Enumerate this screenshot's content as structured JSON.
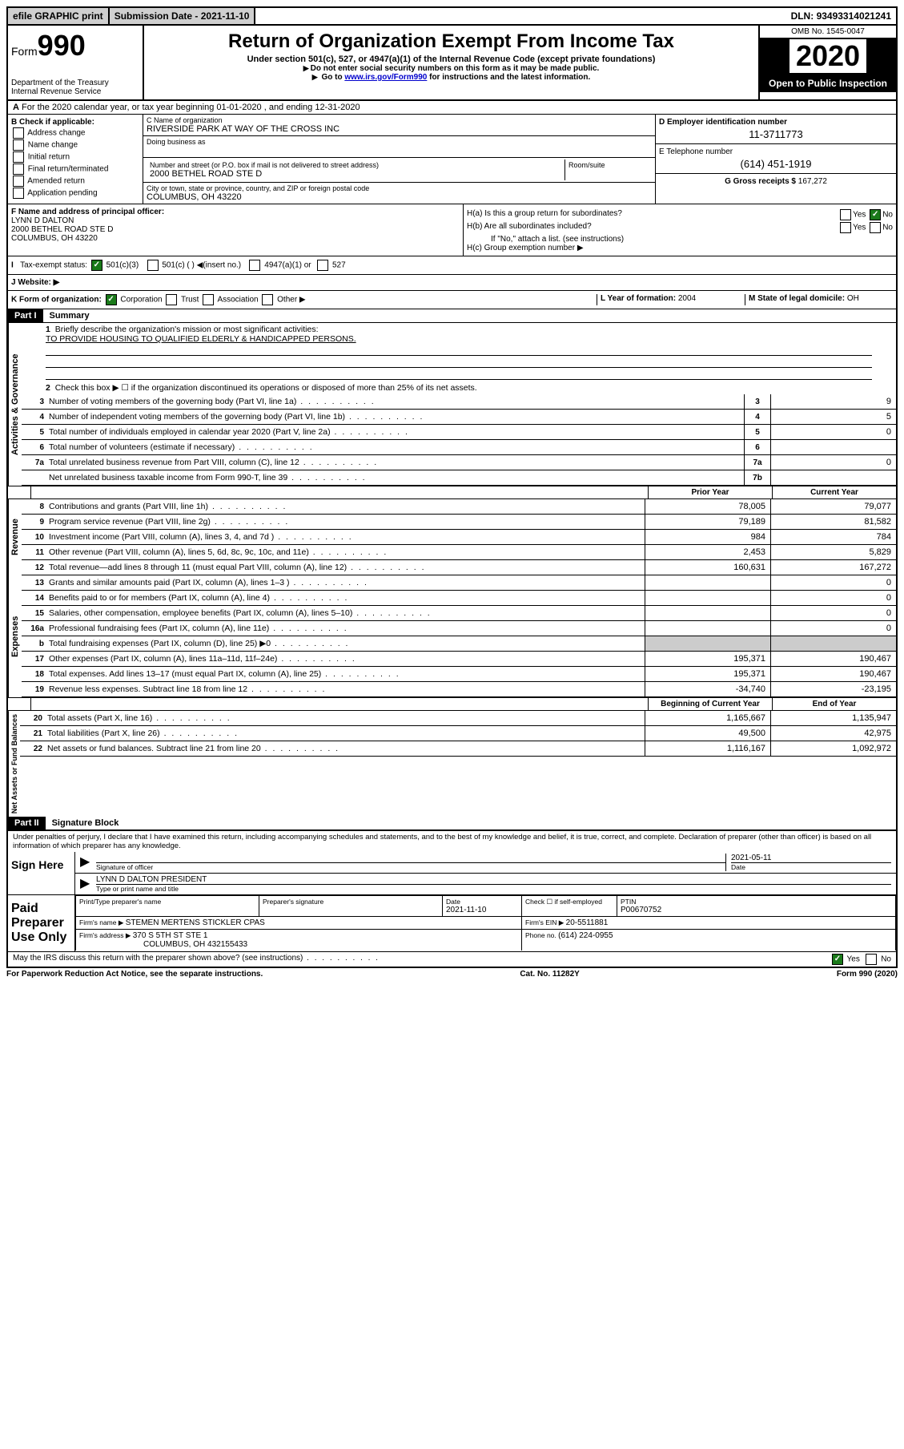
{
  "topbar": {
    "efile": "efile GRAPHIC print",
    "submission_label": "Submission Date - ",
    "submission_date": "2021-11-10",
    "dln_label": "DLN: ",
    "dln": "93493314021241"
  },
  "header": {
    "form_prefix": "Form",
    "form_number": "990",
    "dept1": "Department of the Treasury",
    "dept2": "Internal Revenue Service",
    "title": "Return of Organization Exempt From Income Tax",
    "subtitle": "Under section 501(c), 527, or 4947(a)(1) of the Internal Revenue Code (except private foundations)",
    "note1": "Do not enter social security numbers on this form as it may be made public.",
    "note2_pre": "Go to ",
    "note2_link": "www.irs.gov/Form990",
    "note2_post": " for instructions and the latest information.",
    "omb": "OMB No. 1545-0047",
    "year": "2020",
    "public": "Open to Public Inspection"
  },
  "row_a": "For the 2020 calendar year, or tax year beginning 01-01-2020   , and ending 12-31-2020",
  "section_b": {
    "label": "B Check if applicable:",
    "opts": [
      "Address change",
      "Name change",
      "Initial return",
      "Final return/terminated",
      "Amended return",
      "Application pending"
    ]
  },
  "section_c": {
    "name_label": "C Name of organization",
    "name": "RIVERSIDE PARK AT WAY OF THE CROSS INC",
    "dba_label": "Doing business as",
    "addr_label": "Number and street (or P.O. box if mail is not delivered to street address)",
    "room_label": "Room/suite",
    "addr": "2000 BETHEL ROAD STE D",
    "city_label": "City or town, state or province, country, and ZIP or foreign postal code",
    "city": "COLUMBUS, OH  43220"
  },
  "section_d": {
    "ein_label": "D Employer identification number",
    "ein": "11-3711773",
    "tel_label": "E Telephone number",
    "tel": "(614) 451-1919",
    "gross_label": "G Gross receipts $ ",
    "gross": "167,272"
  },
  "section_f": {
    "label": "F  Name and address of principal officer:",
    "name": "LYNN D DALTON",
    "addr1": "2000 BETHEL ROAD STE D",
    "addr2": "COLUMBUS, OH  43220"
  },
  "section_h": {
    "ha": "H(a)  Is this a group return for subordinates?",
    "hb": "H(b)  Are all subordinates included?",
    "hb_note": "If \"No,\" attach a list. (see instructions)",
    "hc": "H(c)  Group exemption number ▶",
    "yes": "Yes",
    "no": "No"
  },
  "tax_exempt": {
    "label": "Tax-exempt status:",
    "opt1": "501(c)(3)",
    "opt2": "501(c) (  ) ◀(insert no.)",
    "opt3": "4947(a)(1) or",
    "opt4": "527"
  },
  "website_label": "J   Website: ▶",
  "section_k": {
    "label": "K Form of organization:",
    "corp": "Corporation",
    "trust": "Trust",
    "assoc": "Association",
    "other": "Other ▶",
    "l_label": "L Year of formation: ",
    "l_val": "2004",
    "m_label": "M State of legal domicile: ",
    "m_val": "OH"
  },
  "part1": {
    "header": "Part I",
    "title": "Summary",
    "line1_label": "Briefly describe the organization's mission or most significant activities:",
    "line1_val": "TO PROVIDE HOUSING TO QUALIFIED ELDERLY & HANDICAPPED PERSONS.",
    "line2": "Check this box ▶ ☐  if the organization discontinued its operations or disposed of more than 25% of its net assets.",
    "vert1": "Activities & Governance",
    "vert2": "Revenue",
    "vert3": "Expenses",
    "vert4": "Net Assets or Fund Balances",
    "prior_year": "Prior Year",
    "current_year": "Current Year",
    "begin_year": "Beginning of Current Year",
    "end_year": "End of Year",
    "lines_gov": [
      {
        "n": "3",
        "d": "Number of voting members of the governing body (Part VI, line 1a)",
        "box": "3",
        "v": "9"
      },
      {
        "n": "4",
        "d": "Number of independent voting members of the governing body (Part VI, line 1b)",
        "box": "4",
        "v": "5"
      },
      {
        "n": "5",
        "d": "Total number of individuals employed in calendar year 2020 (Part V, line 2a)",
        "box": "5",
        "v": "0"
      },
      {
        "n": "6",
        "d": "Total number of volunteers (estimate if necessary)",
        "box": "6",
        "v": ""
      },
      {
        "n": "7a",
        "d": "Total unrelated business revenue from Part VIII, column (C), line 12",
        "box": "7a",
        "v": "0"
      },
      {
        "n": "",
        "d": "Net unrelated business taxable income from Form 990-T, line 39",
        "box": "7b",
        "v": ""
      }
    ],
    "lines_rev": [
      {
        "n": "8",
        "d": "Contributions and grants (Part VIII, line 1h)",
        "p": "78,005",
        "c": "79,077"
      },
      {
        "n": "9",
        "d": "Program service revenue (Part VIII, line 2g)",
        "p": "79,189",
        "c": "81,582"
      },
      {
        "n": "10",
        "d": "Investment income (Part VIII, column (A), lines 3, 4, and 7d )",
        "p": "984",
        "c": "784"
      },
      {
        "n": "11",
        "d": "Other revenue (Part VIII, column (A), lines 5, 6d, 8c, 9c, 10c, and 11e)",
        "p": "2,453",
        "c": "5,829"
      },
      {
        "n": "12",
        "d": "Total revenue—add lines 8 through 11 (must equal Part VIII, column (A), line 12)",
        "p": "160,631",
        "c": "167,272"
      }
    ],
    "lines_exp": [
      {
        "n": "13",
        "d": "Grants and similar amounts paid (Part IX, column (A), lines 1–3 )",
        "p": "",
        "c": "0"
      },
      {
        "n": "14",
        "d": "Benefits paid to or for members (Part IX, column (A), line 4)",
        "p": "",
        "c": "0"
      },
      {
        "n": "15",
        "d": "Salaries, other compensation, employee benefits (Part IX, column (A), lines 5–10)",
        "p": "",
        "c": "0"
      },
      {
        "n": "16a",
        "d": "Professional fundraising fees (Part IX, column (A), line 11e)",
        "p": "",
        "c": "0"
      },
      {
        "n": "b",
        "d": "Total fundraising expenses (Part IX, column (D), line 25) ▶0",
        "p": "shaded",
        "c": "shaded"
      },
      {
        "n": "17",
        "d": "Other expenses (Part IX, column (A), lines 11a–11d, 11f–24e)",
        "p": "195,371",
        "c": "190,467"
      },
      {
        "n": "18",
        "d": "Total expenses. Add lines 13–17 (must equal Part IX, column (A), line 25)",
        "p": "195,371",
        "c": "190,467"
      },
      {
        "n": "19",
        "d": "Revenue less expenses. Subtract line 18 from line 12",
        "p": "-34,740",
        "c": "-23,195"
      }
    ],
    "lines_net": [
      {
        "n": "20",
        "d": "Total assets (Part X, line 16)",
        "p": "1,165,667",
        "c": "1,135,947"
      },
      {
        "n": "21",
        "d": "Total liabilities (Part X, line 26)",
        "p": "49,500",
        "c": "42,975"
      },
      {
        "n": "22",
        "d": "Net assets or fund balances. Subtract line 21 from line 20",
        "p": "1,116,167",
        "c": "1,092,972"
      }
    ]
  },
  "part2": {
    "header": "Part II",
    "title": "Signature Block",
    "declaration": "Under penalties of perjury, I declare that I have examined this return, including accompanying schedules and statements, and to the best of my knowledge and belief, it is true, correct, and complete. Declaration of preparer (other than officer) is based on all information of which preparer has any knowledge.",
    "sign_here": "Sign Here",
    "sig_officer": "Signature of officer",
    "sig_date": "2021-05-11",
    "date_label": "Date",
    "officer_name": "LYNN D DALTON PRESIDENT",
    "type_name": "Type or print name and title",
    "paid_prep": "Paid Preparer Use Only",
    "prep_name_label": "Print/Type preparer's name",
    "prep_sig_label": "Preparer's signature",
    "prep_date_label": "Date",
    "prep_date": "2021-11-10",
    "check_self": "Check ☐ if self-employed",
    "ptin_label": "PTIN",
    "ptin": "P00670752",
    "firm_name_label": "Firm's name    ▶ ",
    "firm_name": "STEMEN MERTENS STICKLER CPAS",
    "firm_ein_label": "Firm's EIN ▶ ",
    "firm_ein": "20-5511881",
    "firm_addr_label": "Firm's address ▶ ",
    "firm_addr1": "370 S 5TH ST STE 1",
    "firm_addr2": "COLUMBUS, OH  432155433",
    "phone_label": "Phone no. ",
    "phone": "(614) 224-0955",
    "discuss": "May the IRS discuss this return with the preparer shown above? (see instructions)"
  },
  "footer": {
    "left": "For Paperwork Reduction Act Notice, see the separate instructions.",
    "mid": "Cat. No. 11282Y",
    "right": "Form 990 (2020)"
  }
}
